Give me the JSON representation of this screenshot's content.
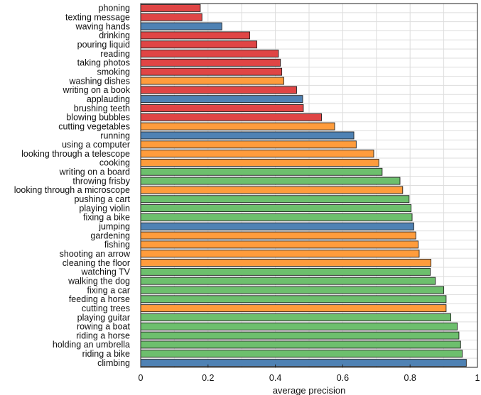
{
  "chart_data": {
    "type": "bar",
    "orientation": "horizontal",
    "xlabel": "average precision",
    "xlim": [
      0,
      1
    ],
    "xticks": [
      "0",
      "0.2",
      "0.4",
      "0.6",
      "0.8",
      "1"
    ],
    "grid": true,
    "colors": {
      "red": "#e04545",
      "blue": "#4f82b4",
      "orange": "#ff9c3c",
      "green": "#6dbf6d",
      "bar_edge": "#222222",
      "grid": "#dddddd"
    },
    "bars": [
      {
        "label": "phoning",
        "value": 0.177,
        "color": "red"
      },
      {
        "label": "texting message",
        "value": 0.182,
        "color": "red"
      },
      {
        "label": "waving hands",
        "value": 0.241,
        "color": "blue"
      },
      {
        "label": "drinking",
        "value": 0.324,
        "color": "red"
      },
      {
        "label": "pouring liquid",
        "value": 0.345,
        "color": "red"
      },
      {
        "label": "reading",
        "value": 0.409,
        "color": "red"
      },
      {
        "label": "taking photos",
        "value": 0.415,
        "color": "red"
      },
      {
        "label": "smoking",
        "value": 0.419,
        "color": "red"
      },
      {
        "label": "washing dishes",
        "value": 0.425,
        "color": "orange"
      },
      {
        "label": "writing on a book",
        "value": 0.463,
        "color": "red"
      },
      {
        "label": "applauding",
        "value": 0.481,
        "color": "blue"
      },
      {
        "label": "brushing teeth",
        "value": 0.483,
        "color": "red"
      },
      {
        "label": "blowing bubbles",
        "value": 0.537,
        "color": "red"
      },
      {
        "label": "cutting vegetables",
        "value": 0.576,
        "color": "orange"
      },
      {
        "label": "running",
        "value": 0.633,
        "color": "blue"
      },
      {
        "label": "using a computer",
        "value": 0.64,
        "color": "orange"
      },
      {
        "label": "looking through a telescope",
        "value": 0.692,
        "color": "orange"
      },
      {
        "label": "cooking",
        "value": 0.707,
        "color": "orange"
      },
      {
        "label": "writing on a board",
        "value": 0.717,
        "color": "green"
      },
      {
        "label": "throwing frisby",
        "value": 0.77,
        "color": "green"
      },
      {
        "label": "looking through a microscope",
        "value": 0.778,
        "color": "orange"
      },
      {
        "label": "pushing a cart",
        "value": 0.797,
        "color": "green"
      },
      {
        "label": "playing violin",
        "value": 0.803,
        "color": "green"
      },
      {
        "label": "fixing a bike",
        "value": 0.806,
        "color": "green"
      },
      {
        "label": "jumping",
        "value": 0.811,
        "color": "blue"
      },
      {
        "label": "gardening",
        "value": 0.817,
        "color": "orange"
      },
      {
        "label": "fishing",
        "value": 0.824,
        "color": "orange"
      },
      {
        "label": "shooting an arrow",
        "value": 0.827,
        "color": "orange"
      },
      {
        "label": "cleaning the floor",
        "value": 0.862,
        "color": "orange"
      },
      {
        "label": "watching TV",
        "value": 0.86,
        "color": "green"
      },
      {
        "label": "walking the dog",
        "value": 0.875,
        "color": "green"
      },
      {
        "label": "fixing a car",
        "value": 0.9,
        "color": "green"
      },
      {
        "label": "feeding a horse",
        "value": 0.907,
        "color": "green"
      },
      {
        "label": "cutting trees",
        "value": 0.907,
        "color": "orange"
      },
      {
        "label": "playing guitar",
        "value": 0.921,
        "color": "green"
      },
      {
        "label": "rowing a boat",
        "value": 0.94,
        "color": "green"
      },
      {
        "label": "riding a horse",
        "value": 0.945,
        "color": "green"
      },
      {
        "label": "holding an umbrella",
        "value": 0.95,
        "color": "green"
      },
      {
        "label": "riding a bike",
        "value": 0.955,
        "color": "green"
      },
      {
        "label": "climbing",
        "value": 0.967,
        "color": "blue"
      }
    ]
  }
}
